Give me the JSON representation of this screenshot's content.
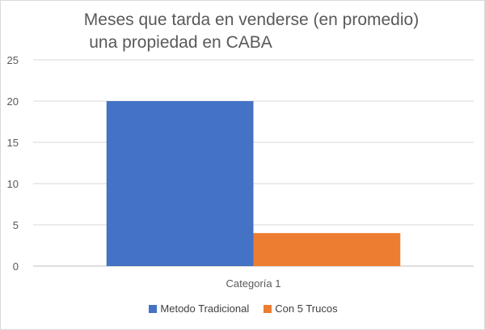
{
  "chart_data": {
    "type": "bar",
    "title_lines": [
      "Meses que tarda en venderse (en promedio)",
      "una propiedad en CABA"
    ],
    "categories": [
      "Categoría 1"
    ],
    "series": [
      {
        "name": "Metodo Tradicional",
        "values": [
          20
        ],
        "color": "#4472c4"
      },
      {
        "name": "Con 5 Trucos",
        "values": [
          4
        ],
        "color": "#ed7d31"
      }
    ],
    "ylim": [
      0,
      25
    ],
    "yticks": [
      "0",
      "5",
      "10",
      "15",
      "20",
      "25"
    ],
    "grid": true,
    "legend_position": "bottom"
  }
}
